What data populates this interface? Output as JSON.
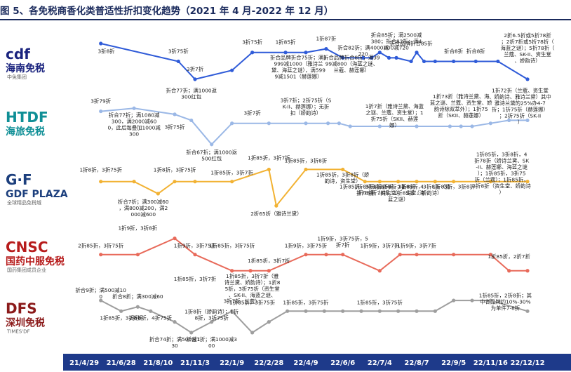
{
  "chart_data": {
    "type": "line",
    "title": "图 5、各免税商香化类普适性折扣变化趋势（2021 年 4 月-2022 年 12 月）",
    "xlabel": "",
    "ylabel": "",
    "categories": [
      "21/4/29",
      "21/6/28",
      "21/8/10",
      "21/11/3",
      "22/1/9",
      "22/2/28",
      "22/4/9",
      "22/6/6",
      "22/7/4",
      "22/8/7",
      "22/9/5",
      "22/11/16",
      "22/12/12"
    ],
    "series": [
      {
        "name": "海南免税",
        "color": "#2f5bd8",
        "logo": {
          "text": "海南免税",
          "brand": "cdf",
          "badge": "中免集团",
          "color": "#1a237e"
        },
        "x": [
          0.45,
          2.55,
          3.0,
          4.0,
          4.55,
          5.45,
          6.0,
          6.55,
          7.0,
          7.55,
          7.78,
          8.0,
          8.25,
          8.45,
          8.85,
          9.0,
          9.2,
          9.5,
          10.0,
          10.6,
          11.2,
          12.0
        ],
        "y": [
          0.9,
          0.8,
          0.7,
          0.75,
          0.85,
          0.85,
          0.85,
          0.87,
          0.82,
          0.82,
          0.82,
          0.85,
          0.82,
          0.82,
          0.8,
          0.85,
          0.8,
          0.8,
          0.8,
          0.8,
          0.8,
          0.7
        ],
        "labels": [
          {
            "text": "3折8折"
          },
          {
            "text": "3折75折"
          },
          {
            "text": "3折7折"
          },
          {
            "text": "3折75折"
          },
          {
            "text": "1折85折"
          },
          {
            "text": "折合品牌折合75折；满3999减1000（雅诗兰黛、海蓝之谜），满5999减1501（赫莲娜）"
          },
          {
            "text": "1折87折"
          },
          {
            "text": "折合82折；满4000减720"
          },
          {
            "text": "折合品牌折合8折；满3999减800（海蓝之谜、兰蔻、赫莲娜）"
          },
          {
            "text": "折合85折；满2500减380；折合82折；满4000减720"
          },
          {
            "text": "折合品牌折合85折"
          },
          {
            "text": "折合8折"
          },
          {
            "text": "折合8折"
          },
          {
            "text": "2折6.5折或5折78折；2折7折或5折78折（海蓝之谜）；5折78折（兰蔻、SK-II、资生堂、娇韵诗）"
          }
        ]
      },
      {
        "name": "海旅免税",
        "color": "#9bb8e6",
        "logo": {
          "text": "海旅免税",
          "brand": "HTDF",
          "color": "#0f8f96"
        },
        "x": [
          0.45,
          1.35,
          2.45,
          2.9,
          3.45,
          4.0,
          5.0,
          6.0,
          6.6,
          6.9,
          7.2,
          8.0,
          9.0,
          9.9,
          10.2,
          10.5,
          11.0,
          11.5,
          12.0
        ],
        "y": [
          0.78,
          0.79,
          0.77,
          0.75,
          0.67,
          0.74,
          0.74,
          0.74,
          0.74,
          0.74,
          0.73,
          0.73,
          0.73,
          0.73,
          0.73,
          0.73,
          0.74,
          0.75,
          0.75
        ],
        "labels": [
          {
            "text": "3折79折"
          },
          {
            "text": "折合77折；满1080减300，满2000减600，此后每叠加1000减300"
          },
          {
            "text": "3折75折"
          },
          {
            "text": "折合77折；满1000返300红包"
          },
          {
            "text": "折合67折；满1000返500红包"
          },
          {
            "text": "3折7折"
          },
          {
            "text": "3折7折；2折75折（SK-II、赫莲娜）；无折扣（娇韵诗）"
          },
          {
            "text": "1折7折（雅诗兰黛、海蓝之谜、兰蔻、资生堂）；1折75折（SKII、赫莲娜）"
          },
          {
            "text": "1折73折（雅诗兰黛、海蓝之谜、兰蔻、资生堂、娇韵诗除双萃外）；1折75折（SKII、赫莲娜）"
          },
          {
            "text": "1折72折（兰蔻、资生堂、娇韵诗、雅诗兰黛）其中雅诗兰黛的25%办4-7折；1折75折（赫莲娜）；2折75折（SK-II）"
          }
        ]
      },
      {
        "name": "GDF PLAZA",
        "color": "#f2b233",
        "logo": {
          "text": "GDF PLAZA",
          "brand": "G·F",
          "badge": "全球精品免税城",
          "color": "#1c3f7d"
        },
        "x": [
          0.45,
          1.35,
          2.0,
          2.45,
          3.0,
          4.0,
          5.0,
          5.2,
          6.0,
          7.0,
          7.6,
          8.0,
          8.5,
          9.0,
          9.5,
          10.0,
          11.0,
          12.0
        ],
        "y": [
          0.8,
          0.8,
          0.75,
          0.8,
          0.8,
          0.8,
          0.85,
          0.7,
          0.85,
          0.85,
          0.8,
          0.8,
          0.8,
          0.8,
          0.8,
          0.8,
          0.8,
          0.8
        ],
        "labels": [
          {
            "text": "1折8折，3折75折"
          },
          {
            "text": "折合7折；满300减60，满800减200，满2000减600"
          },
          {
            "text": "1折8折，3折75折"
          },
          {
            "text": "1折85折，3折7折"
          },
          {
            "text": "2折65折（雅诗兰黛）"
          },
          {
            "text": "1折85折，3折7折"
          },
          {
            "text": "1折85折，3折8折"
          },
          {
            "text": "1折85折，3折8折（娇韵诗，资生堂）"
          },
          {
            "text": "1折85折，3折8折，4折78折"
          },
          {
            "text": "1折85折，2折8折；2折75折（资生堂）"
          },
          {
            "text": "1折85折，3折8折，4折78折；1折85折（海蓝之谜）"
          },
          {
            "text": "1折85折，3折8折（资生堂、娇韵诗）"
          },
          {
            "text": "1折85折，3折8折"
          },
          {
            "text": "1折85折，3折8折，4折78折（娇诗兰黛、SK-II、赫莲娜、海蓝之谜）；1折85折，3折75折（兰蔻）；1折85折，3折8折（资生堂、娇韵诗）"
          }
        ]
      },
      {
        "name": "国药中服免税",
        "color": "#e86a5a",
        "logo": {
          "text": "国药中服免税",
          "brand": "CNSC",
          "badge": "国药集团成员企业",
          "color": "#b71c1c"
        },
        "x": [
          0.45,
          1.45,
          2.45,
          3.0,
          4.0,
          4.5,
          5.0,
          6.0,
          6.55,
          7.0,
          8.0,
          8.55,
          9.0,
          10.0,
          11.0,
          11.5,
          12.0
        ],
        "y": [
          0.75,
          0.75,
          0.8,
          0.75,
          0.7,
          0.7,
          0.7,
          0.75,
          0.75,
          0.75,
          0.7,
          0.75,
          0.75,
          0.75,
          0.75,
          0.7,
          0.7
        ],
        "labels": [
          {
            "text": "2折85折，3折75折"
          },
          {
            "text": "1折9折，3折8折"
          },
          {
            "text": "1折9折，3折75折"
          },
          {
            "text": "1折85折，3折7折"
          },
          {
            "text": "1折85折，3折75折"
          },
          {
            "text": "1折85折，3折7折（雅诗兰黛、娇韵诗）；1折85折，3折75折（资生堂、SK-II、海蓝之谜、兰蔻）"
          },
          {
            "text": "1折85折，3折7折"
          },
          {
            "text": "1折9折，3折75折"
          },
          {
            "text": "1折9折，3折75折，5折7折"
          },
          {
            "text": "1折9折，3折7折"
          },
          {
            "text": "1折9折，3折7折"
          },
          {
            "text": "1折85折，2折7折"
          }
        ]
      },
      {
        "name": "深圳免税",
        "color": "#9e9e9e",
        "logo": {
          "text": "深圳免税",
          "brand": "DFS",
          "badge": "TIMES'DF",
          "color": "#8b1a1a"
        },
        "x": [
          0.45,
          1.0,
          1.45,
          1.8,
          2.45,
          2.9,
          3.45,
          4.0,
          4.55,
          5.0,
          5.5,
          6.0,
          6.5,
          7.0,
          7.5,
          8.0,
          8.5,
          9.0,
          9.5,
          10.0,
          10.5,
          11.0,
          12.0
        ],
        "y": [
          0.9,
          0.85,
          0.87,
          0.85,
          0.8,
          0.75,
          0.8,
          0.85,
          0.75,
          0.8,
          0.85,
          0.85,
          0.85,
          0.85,
          0.85,
          0.85,
          0.85,
          0.85,
          0.85,
          0.9,
          0.9,
          0.9,
          0.85
        ],
        "labels": [
          {
            "text": "折合9折；满500减100"
          },
          {
            "text": "1折85折，3折8折"
          },
          {
            "text": "折合8折；满300减60"
          },
          {
            "text": "2折8折，4折75折"
          },
          {
            "text": "折合74折；满500减130"
          },
          {
            "text": "1折8折（娇韵诗）；1折8折，3折75折"
          },
          {
            "text": "折合7折；满1000减300"
          },
          {
            "text": "3折7折"
          },
          {
            "text": "1折85折，3折75折"
          },
          {
            "text": "1折85折，3折75折"
          },
          {
            "text": "1折85折，3折75折"
          },
          {
            "text": "1折85折，2折8折；其中各品牌约10%-30%为单件7-8折"
          }
        ]
      }
    ],
    "grid": false,
    "legend": "left-logos"
  },
  "colors": {
    "title": "#1a2a5c",
    "date_bar": "#1e3a8a"
  }
}
